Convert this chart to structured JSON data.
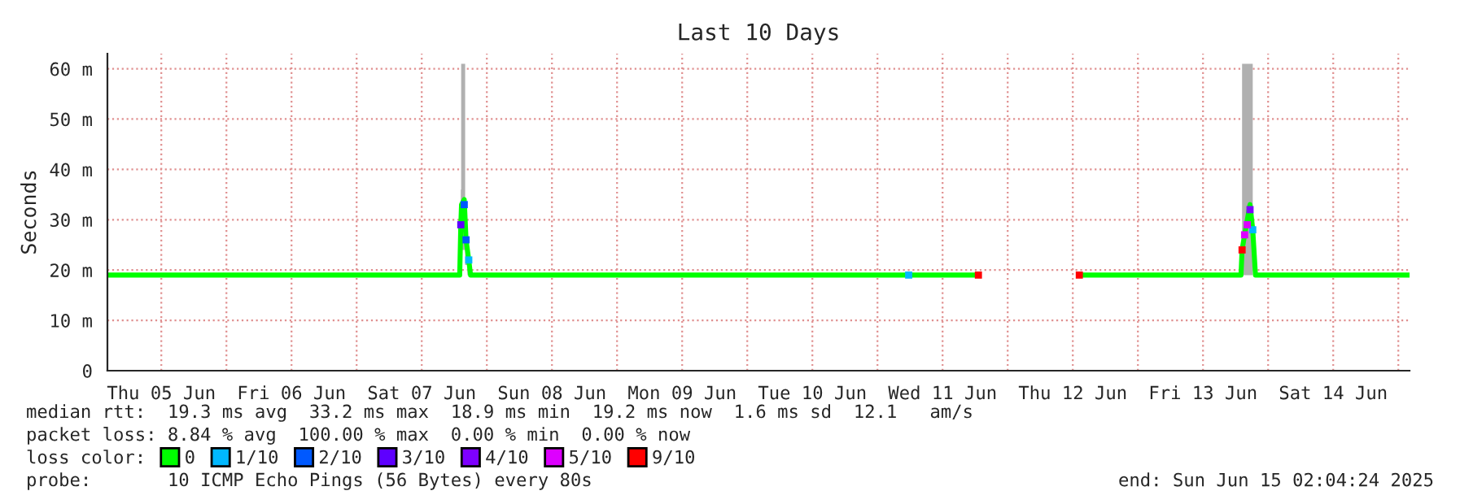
{
  "chart_data": {
    "type": "line",
    "title": "Last 10 Days",
    "ylabel": "Seconds",
    "legend_title": "loss color:",
    "xlim": [
      "2025-06-05T02:04",
      "2025-06-15T02:04"
    ],
    "xticks": [
      {
        "value": "2025-06-05T12:00",
        "label": "Thu 05 Jun"
      },
      {
        "value": "2025-06-06T00:00",
        "label": null
      },
      {
        "value": "2025-06-06T12:00",
        "label": "Fri 06 Jun"
      },
      {
        "value": "2025-06-07T00:00",
        "label": null
      },
      {
        "value": "2025-06-07T12:00",
        "label": "Sat 07 Jun"
      },
      {
        "value": "2025-06-08T00:00",
        "label": null
      },
      {
        "value": "2025-06-08T12:00",
        "label": "Sun 08 Jun"
      },
      {
        "value": "2025-06-09T00:00",
        "label": null
      },
      {
        "value": "2025-06-09T12:00",
        "label": "Mon 09 Jun"
      },
      {
        "value": "2025-06-10T00:00",
        "label": null
      },
      {
        "value": "2025-06-10T12:00",
        "label": "Tue 10 Jun"
      },
      {
        "value": "2025-06-11T00:00",
        "label": null
      },
      {
        "value": "2025-06-11T12:00",
        "label": "Wed 11 Jun"
      },
      {
        "value": "2025-06-12T00:00",
        "label": null
      },
      {
        "value": "2025-06-12T12:00",
        "label": "Thu 12 Jun"
      },
      {
        "value": "2025-06-13T00:00",
        "label": null
      },
      {
        "value": "2025-06-13T12:00",
        "label": "Fri 13 Jun"
      },
      {
        "value": "2025-06-14T00:00",
        "label": null
      },
      {
        "value": "2025-06-14T12:00",
        "label": "Sat 14 Jun"
      },
      {
        "value": "2025-06-15T00:00",
        "label": null
      }
    ],
    "ylim": [
      0,
      63
    ],
    "yticks": [
      0,
      {
        "value": 10,
        "label": "10 m"
      },
      {
        "value": 20,
        "label": "20 m"
      },
      {
        "value": 30,
        "label": "30 m"
      },
      {
        "value": 40,
        "label": "40 m"
      },
      {
        "value": 50,
        "label": "50 m"
      },
      {
        "value": 60,
        "label": "60 m"
      }
    ],
    "grid": true,
    "legend": "bottom",
    "line_style": "solid",
    "series": [
      {
        "name": "0",
        "color": "#00ff00",
        "marker": "none",
        "x": [
          "2025-06-05T02:04",
          "2025-06-06T12:00",
          "2025-06-07T19:00",
          "2025-06-07T19:12",
          "2025-06-07T19:20",
          "2025-06-07T19:50",
          "2025-06-07T20:10",
          "2025-06-07T20:40",
          "2025-06-07T21:00",
          "2025-06-09T00:00",
          "2025-06-11T18:36",
          "2025-06-11T18:40",
          "2025-06-12T13:12",
          "2025-06-13T19:00",
          "2025-06-13T19:12",
          "2025-06-13T19:40",
          "2025-06-13T20:10",
          "2025-06-13T20:40",
          "2025-06-13T21:10",
          "2025-06-13T21:40",
          "2025-06-15T02:04"
        ],
        "values": [
          19,
          19,
          19,
          29,
          33,
          34,
          26,
          22,
          19,
          19,
          19,
          null,
          19,
          19,
          24,
          27,
          30,
          33,
          28,
          19,
          19
        ],
        "lower": [
          null,
          null,
          null,
          19,
          24,
          24,
          21,
          19,
          null,
          null,
          null,
          null,
          null,
          null,
          19,
          19,
          19,
          19,
          19,
          null,
          null
        ],
        "upper": [
          null,
          null,
          null,
          36,
          61,
          61,
          27,
          22,
          null,
          null,
          null,
          null,
          null,
          null,
          61,
          61,
          61,
          61,
          61,
          null,
          null
        ]
      },
      {
        "name": "1/10",
        "type": "scatter",
        "color": "#00b8ff",
        "marker": "square",
        "x": [
          "2025-06-07T20:40",
          "2025-06-11T05:45",
          "2025-06-13T21:10"
        ],
        "values": [
          22,
          19,
          28
        ]
      },
      {
        "name": "2/10",
        "type": "scatter",
        "color": "#0059ff",
        "marker": "square",
        "x": [
          "2025-06-07T19:50",
          "2025-06-07T20:10"
        ],
        "values": [
          33,
          26
        ]
      },
      {
        "name": "3/10",
        "type": "scatter",
        "color": "#5e00ff",
        "marker": "square",
        "x": [
          "2025-06-07T19:12"
        ],
        "values": [
          29
        ]
      },
      {
        "name": "4/10",
        "type": "scatter",
        "color": "#7e00ff",
        "marker": "square",
        "x": [
          "2025-06-13T20:40"
        ],
        "values": [
          32
        ]
      },
      {
        "name": "5/10",
        "type": "scatter",
        "color": "#dd00ff",
        "marker": "square",
        "x": [
          "2025-06-13T19:40",
          "2025-06-13T20:10"
        ],
        "values": [
          27,
          29
        ]
      },
      {
        "name": "9/10",
        "type": "scatter",
        "color": "#ff0000",
        "marker": "square",
        "x": [
          "2025-06-11T18:36",
          "2025-06-12T13:12",
          "2025-06-13T19:12"
        ],
        "values": [
          19,
          19,
          24
        ]
      }
    ],
    "annotations": [
      "median rtt:  19.3 ms avg  33.2 ms max  18.9 ms min  19.2 ms now  1.6 ms sd  12.1   am/s",
      "packet loss: 8.84 % avg  100.00 % max  0.00 % min  0.00 % now",
      "probe:       10 ICMP Echo Pings (56 Bytes) every 80s",
      "end: Sun Jun 15 02:04:24 2025"
    ]
  }
}
